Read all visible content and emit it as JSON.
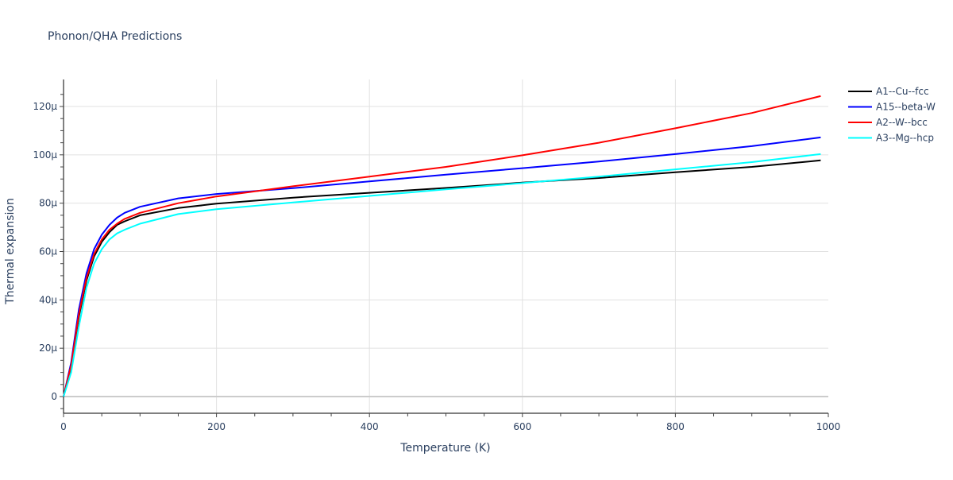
{
  "chart_data": {
    "type": "line",
    "title": "Phonon/QHA Predictions",
    "xlabel": "Temperature (K)",
    "ylabel": "Thermal expansion",
    "xlim": [
      0,
      1000
    ],
    "ylim": [
      -7e-06,
      0.000131
    ],
    "xticks": [
      0,
      200,
      400,
      600,
      800,
      1000
    ],
    "xtick_labels": [
      "0",
      "200",
      "400",
      "600",
      "800",
      "1000"
    ],
    "yticks": [
      0,
      2e-05,
      4e-05,
      6e-05,
      8e-05,
      0.0001,
      0.00012
    ],
    "ytick_labels": [
      "0",
      "20μ",
      "40μ",
      "60μ",
      "80μ",
      "100μ",
      "120μ"
    ],
    "grid": true,
    "legend_position": "top-right, outside",
    "x": [
      0,
      10,
      20,
      30,
      40,
      50,
      60,
      70,
      80,
      100,
      150,
      200,
      300,
      400,
      500,
      600,
      700,
      800,
      900,
      990
    ],
    "series": [
      {
        "name": "A1--Cu--fcc",
        "color": "#000000",
        "values": [
          0,
          1.2e-05,
          3.3e-05,
          4.8e-05,
          5.8e-05,
          6.4e-05,
          6.8e-05,
          7.1e-05,
          7.25e-05,
          7.5e-05,
          7.8e-05,
          7.98e-05,
          8.23e-05,
          8.43e-05,
          8.63e-05,
          8.85e-05,
          9.04e-05,
          9.28e-05,
          9.5e-05,
          9.77e-05
        ]
      },
      {
        "name": "A15--beta-W",
        "color": "#0000ff",
        "values": [
          0,
          1.4e-05,
          3.6e-05,
          5.1e-05,
          6.1e-05,
          6.7e-05,
          7.1e-05,
          7.4e-05,
          7.6e-05,
          7.85e-05,
          8.2e-05,
          8.38e-05,
          8.62e-05,
          8.9e-05,
          9.18e-05,
          9.45e-05,
          9.72e-05,
          0.0001003,
          0.0001036,
          0.0001072
        ]
      },
      {
        "name": "A2--W--bcc",
        "color": "#ff0000",
        "values": [
          0,
          1.3e-05,
          3.4e-05,
          4.9e-05,
          5.9e-05,
          6.5e-05,
          6.9e-05,
          7.15e-05,
          7.35e-05,
          7.6e-05,
          8e-05,
          8.28e-05,
          8.7e-05,
          9.1e-05,
          9.5e-05,
          9.98e-05,
          0.000105,
          0.000111,
          0.0001173,
          0.0001243
        ]
      },
      {
        "name": "A3--Mg--hcp",
        "color": "#00ffff",
        "values": [
          0,
          1e-05,
          2.9e-05,
          4.5e-05,
          5.5e-05,
          6.1e-05,
          6.5e-05,
          6.75e-05,
          6.9e-05,
          7.15e-05,
          7.55e-05,
          7.75e-05,
          8.03e-05,
          8.3e-05,
          8.57e-05,
          8.83e-05,
          9.1e-05,
          9.4e-05,
          9.7e-05,
          0.0001003
        ]
      }
    ]
  }
}
